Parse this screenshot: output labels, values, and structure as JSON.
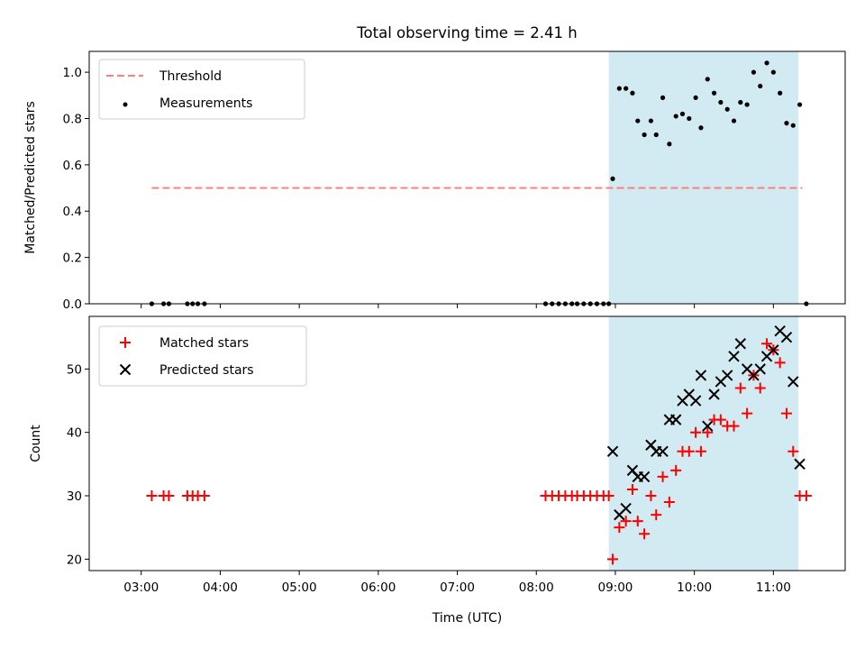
{
  "chart_data": {
    "type": "scatter",
    "title": "Total observing time = 2.41 h",
    "xlabel": "Time (UTC)",
    "x_ticks": [
      "03:00",
      "04:00",
      "05:00",
      "06:00",
      "07:00",
      "08:00",
      "09:00",
      "10:00",
      "11:00"
    ],
    "shaded_interval": [
      "08:55",
      "11:19"
    ],
    "colors": {
      "shade": "#add8e6",
      "threshold": "#ff7f7f",
      "matched": "#ff0000",
      "predicted": "#000000",
      "measurements": "#000000"
    },
    "panels": [
      {
        "ylabel": "Matched/Predicted stars",
        "ylim": [
          0,
          1.09
        ],
        "y_ticks": [
          "0.0",
          "0.2",
          "0.4",
          "0.6",
          "0.8",
          "1.0"
        ],
        "legend_position": "top-left",
        "series": [
          {
            "name": "Threshold",
            "style": "dashed-line",
            "x": [
              "03:08",
              "11:22"
            ],
            "y": [
              0.5,
              0.5
            ]
          },
          {
            "name": "Measurements",
            "style": "dot",
            "x": [
              "03:08",
              "03:17",
              "03:21",
              "03:35",
              "03:39",
              "03:43",
              "03:48",
              "08:07",
              "08:12",
              "08:17",
              "08:22",
              "08:27",
              "08:31",
              "08:36",
              "08:41",
              "08:46",
              "08:51",
              "08:55",
              "08:58",
              "09:03",
              "09:08",
              "09:13",
              "09:17",
              "09:22",
              "09:27",
              "09:31",
              "09:36",
              "09:41",
              "09:46",
              "09:51",
              "09:56",
              "10:01",
              "10:05",
              "10:10",
              "10:15",
              "10:20",
              "10:25",
              "10:30",
              "10:35",
              "10:40",
              "10:45",
              "10:50",
              "10:55",
              "11:00",
              "11:05",
              "11:10",
              "11:15",
              "11:20",
              "11:25"
            ],
            "y": [
              0.0,
              0.0,
              0.0,
              0.0,
              0.0,
              0.0,
              0.0,
              0.0,
              0.0,
              0.0,
              0.0,
              0.0,
              0.0,
              0.0,
              0.0,
              0.0,
              0.0,
              0.0,
              0.54,
              0.93,
              0.93,
              0.91,
              0.79,
              0.73,
              0.79,
              0.73,
              0.89,
              0.69,
              0.81,
              0.82,
              0.8,
              0.89,
              0.76,
              0.97,
              0.91,
              0.87,
              0.84,
              0.79,
              0.87,
              0.86,
              1.0,
              0.94,
              1.04,
              1.0,
              0.91,
              0.78,
              0.77,
              0.86,
              0.0
            ]
          }
        ]
      },
      {
        "ylabel": "Count",
        "ylim": [
          18.2,
          58.3
        ],
        "y_ticks": [
          "20",
          "30",
          "40",
          "50"
        ],
        "legend_position": "top-left",
        "series": [
          {
            "name": "Matched stars",
            "style": "plus",
            "x": [
              "03:08",
              "03:17",
              "03:21",
              "03:35",
              "03:39",
              "03:43",
              "03:48",
              "08:07",
              "08:12",
              "08:17",
              "08:22",
              "08:27",
              "08:31",
              "08:36",
              "08:41",
              "08:46",
              "08:51",
              "08:55",
              "08:58",
              "09:03",
              "09:08",
              "09:13",
              "09:17",
              "09:22",
              "09:27",
              "09:31",
              "09:36",
              "09:41",
              "09:46",
              "09:51",
              "09:56",
              "10:01",
              "10:05",
              "10:10",
              "10:15",
              "10:20",
              "10:25",
              "10:30",
              "10:35",
              "10:40",
              "10:45",
              "10:50",
              "10:55",
              "11:00",
              "11:05",
              "11:10",
              "11:15",
              "11:20",
              "11:25"
            ],
            "y": [
              30,
              30,
              30,
              30,
              30,
              30,
              30,
              30,
              30,
              30,
              30,
              30,
              30,
              30,
              30,
              30,
              30,
              30,
              20,
              25,
              26,
              31,
              26,
              24,
              30,
              27,
              33,
              29,
              34,
              37,
              37,
              40,
              37,
              40,
              42,
              42,
              41,
              41,
              47,
              43,
              49,
              47,
              54,
              53,
              51,
              43,
              37,
              30,
              30
            ]
          },
          {
            "name": "Predicted stars",
            "style": "x",
            "x": [
              "08:58",
              "09:03",
              "09:08",
              "09:13",
              "09:17",
              "09:22",
              "09:27",
              "09:31",
              "09:36",
              "09:41",
              "09:46",
              "09:51",
              "09:56",
              "10:01",
              "10:05",
              "10:10",
              "10:15",
              "10:20",
              "10:25",
              "10:30",
              "10:35",
              "10:40",
              "10:45",
              "10:50",
              "10:55",
              "11:00",
              "11:05",
              "11:10",
              "11:15",
              "11:20"
            ],
            "y": [
              37,
              27,
              28,
              34,
              33,
              33,
              38,
              37,
              37,
              42,
              42,
              45,
              46,
              45,
              49,
              41,
              46,
              48,
              49,
              52,
              54,
              50,
              49,
              50,
              52,
              53,
              56,
              55,
              48,
              35
            ]
          }
        ]
      }
    ]
  }
}
